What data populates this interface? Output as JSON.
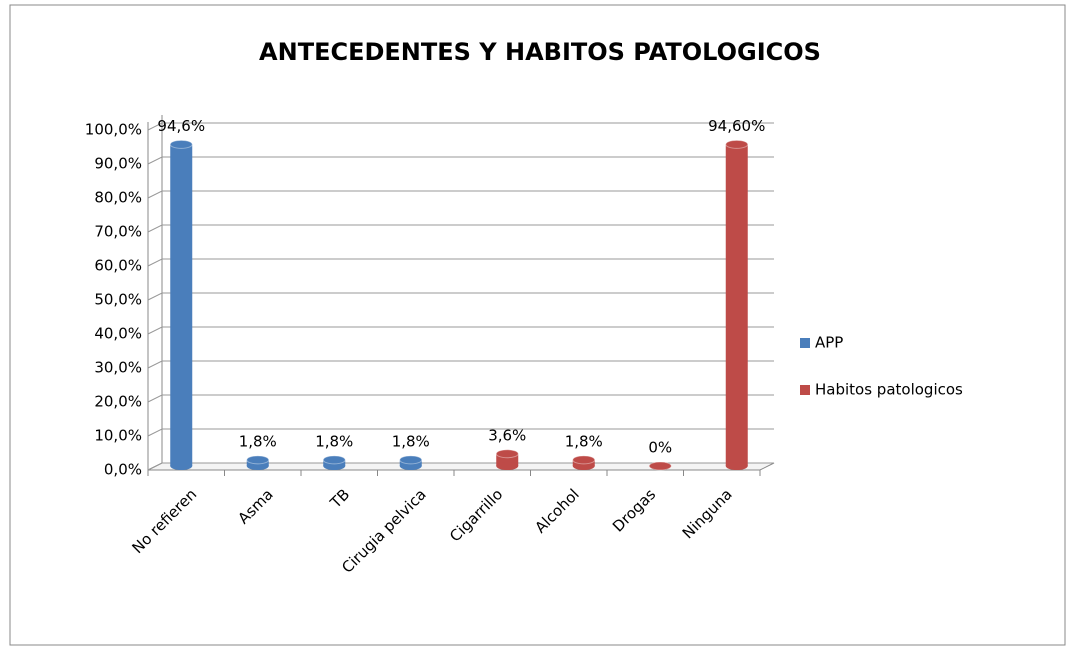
{
  "chart_data": {
    "type": "bar",
    "title": "ANTECEDENTES Y HABITOS PATOLOGICOS",
    "categories": [
      "No refieren",
      "Asma",
      "TB",
      "Cirugia pelvica",
      "Cigarrillo",
      "Alcohol",
      "Drogas",
      "Ninguna"
    ],
    "series": [
      {
        "name": "APP",
        "color": "#4a7ebb",
        "values": [
          94.6,
          1.8,
          1.8,
          1.8,
          null,
          null,
          null,
          null
        ],
        "value_labels": [
          "94,6%",
          "1,8%",
          "1,8%",
          "1,8%",
          null,
          null,
          null,
          null
        ]
      },
      {
        "name": "Habitos patologicos",
        "color": "#be4b48",
        "values": [
          null,
          null,
          null,
          null,
          3.6,
          1.8,
          0,
          94.6
        ],
        "value_labels": [
          null,
          null,
          null,
          null,
          "3,6%",
          "1,8%",
          "0%",
          "94,60%"
        ]
      }
    ],
    "ylim": [
      0,
      100
    ],
    "yticks": [
      {
        "value": 0,
        "label": "0,0%"
      },
      {
        "value": 10,
        "label": "10,0%"
      },
      {
        "value": 20,
        "label": "20,0%"
      },
      {
        "value": 30,
        "label": "30,0%"
      },
      {
        "value": 40,
        "label": "40,0%"
      },
      {
        "value": 50,
        "label": "50,0%"
      },
      {
        "value": 60,
        "label": "60,0%"
      },
      {
        "value": 70,
        "label": "70,0%"
      },
      {
        "value": 80,
        "label": "80,0%"
      },
      {
        "value": 90,
        "label": "90,0%"
      },
      {
        "value": 100,
        "label": "100,0%"
      }
    ],
    "grid": true,
    "legend": "right"
  }
}
